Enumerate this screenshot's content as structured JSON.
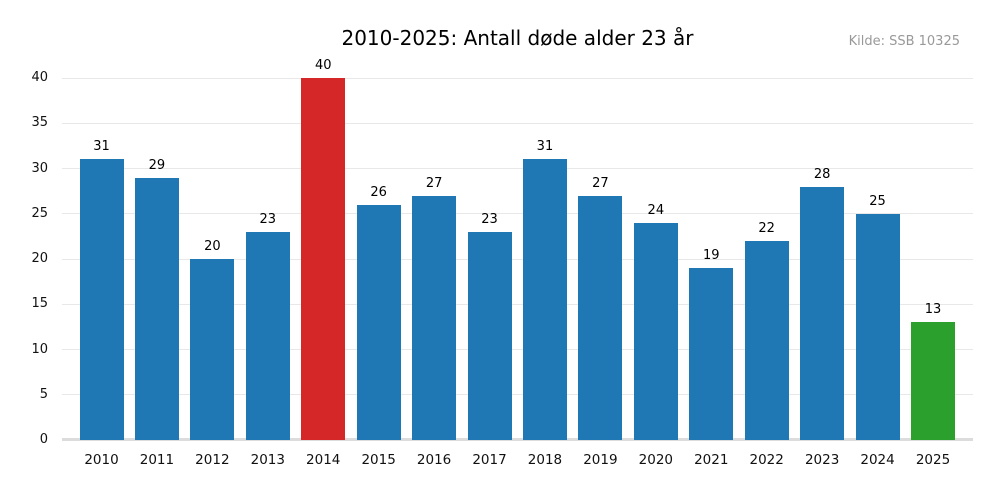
{
  "header": {
    "title": "2010-2025: Antall døde alder 23 år",
    "source_note": "Kilde: SSB 10325"
  },
  "colors": {
    "bar_default": "#1f77b4",
    "bar_highlight_peak": "#d62728",
    "bar_highlight_latest": "#2ca02c",
    "gridline": "#e8e8e8",
    "baseline": "#dcdcdc",
    "tick_text": "#111111",
    "value_text": "#000000",
    "source_text": "#999999",
    "title_text": "#000000",
    "background": "#ffffff"
  },
  "chart_data": {
    "type": "bar",
    "title": "2010-2025: Antall døde alder 23 år",
    "subtitle": "",
    "source": "Kilde: SSB 10325",
    "categories": [
      "2010",
      "2011",
      "2012",
      "2013",
      "2014",
      "2015",
      "2016",
      "2017",
      "2018",
      "2019",
      "2020",
      "2021",
      "2022",
      "2023",
      "2024",
      "2025"
    ],
    "values": [
      31,
      29,
      20,
      23,
      40,
      26,
      27,
      23,
      31,
      27,
      24,
      19,
      22,
      28,
      25,
      13
    ],
    "bar_colors": [
      "#1f77b4",
      "#1f77b4",
      "#1f77b4",
      "#1f77b4",
      "#d62728",
      "#1f77b4",
      "#1f77b4",
      "#1f77b4",
      "#1f77b4",
      "#1f77b4",
      "#1f77b4",
      "#1f77b4",
      "#1f77b4",
      "#1f77b4",
      "#1f77b4",
      "#2ca02c"
    ],
    "value_labels": [
      31,
      29,
      20,
      23,
      40,
      26,
      27,
      23,
      31,
      27,
      24,
      19,
      22,
      28,
      25,
      13
    ],
    "xlabel": "",
    "ylabel": "",
    "ylim": [
      0,
      40
    ],
    "yticks": [
      0,
      5,
      10,
      15,
      20,
      25,
      30,
      35,
      40
    ],
    "grid": "horizontal",
    "legend": "none"
  }
}
